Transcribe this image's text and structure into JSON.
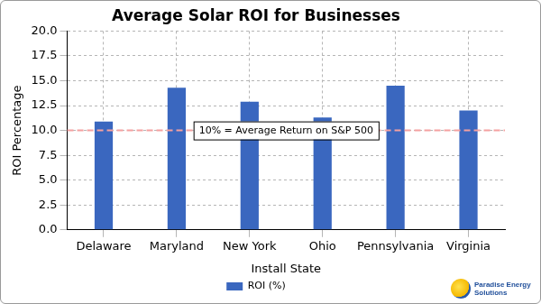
{
  "chart_data": {
    "type": "bar",
    "title": "Average Solar ROI for Businesses",
    "x_label": "Install State",
    "y_label": "ROI Percentage",
    "categories": [
      "Delaware",
      "Maryland",
      "New York",
      "Ohio",
      "Pennsylvania",
      "Virginia"
    ],
    "series": [
      {
        "name": "ROI (%)",
        "color": "#3a67bf",
        "values": [
          10.9,
          14.3,
          12.9,
          11.3,
          14.5,
          12.0
        ]
      }
    ],
    "ylim": [
      0,
      20
    ],
    "yticks": [
      {
        "value": 0,
        "label": "0.0"
      },
      2.5,
      {
        "value": 5,
        "label": "5.0"
      },
      7.5,
      {
        "value": 10,
        "label": "10.0"
      },
      12.5,
      {
        "value": 15,
        "label": "15.0"
      },
      17.5,
      {
        "value": 20,
        "label": "20.0"
      }
    ],
    "grid": true,
    "legend": "bottom",
    "reference_line": {
      "value": 10,
      "label": "10% = Average Return on S&P 500",
      "color": "#f4a0a0",
      "line_style": "dashed"
    }
  },
  "logo": "Paradise Energy Solutions"
}
